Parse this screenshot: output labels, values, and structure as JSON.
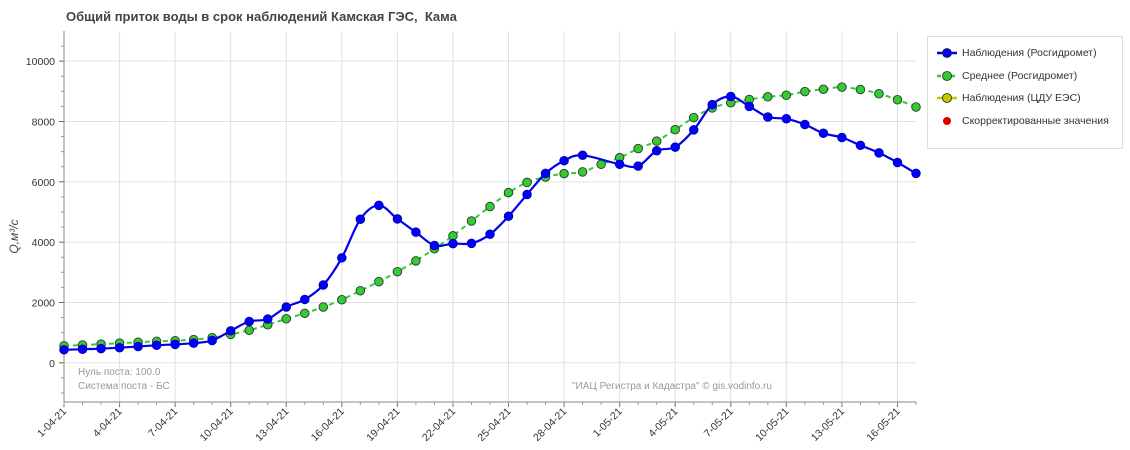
{
  "title": "Общий приток воды в срок наблюдений Камская ГЭС,  Кама",
  "legend": [
    {
      "label": "Наблюдения (Росгидромет)",
      "color": "#0000ee",
      "marker_color": "#0000ff",
      "style": "solid",
      "icon": "blue-line-circle-icon"
    },
    {
      "label": "Среднее (Росгидромет)",
      "color": "#33cc33",
      "marker_color": "#33cc33",
      "style": "dashed",
      "icon": "green-dashed-circle-icon"
    },
    {
      "label": "Наблюдения (ЦДУ ЕЭС)",
      "color": "#c8c800",
      "marker_color": "#c8c800",
      "style": "solid",
      "icon": "yellow-line-circle-icon"
    },
    {
      "label": "Скорректированные значения",
      "color": "#dd0000",
      "marker_color": "#dd0000",
      "style": "none",
      "icon": "red-dot-icon"
    }
  ],
  "notes": {
    "zero_post": "Нуль поста: 100.0",
    "system": "Система поста - БС",
    "credit": "\"ИАЦ Регистра и Кадастра\" © gis.vodinfo.ru"
  },
  "chart_data": {
    "type": "line",
    "title": "Общий приток воды в срок наблюдений Камская ГЭС,  Кама",
    "xlabel": "",
    "ylabel": "Q,м³/с",
    "x_start": "1-04-21",
    "x_end": "17-05-21",
    "ylim": [
      -1300,
      11000
    ],
    "yticks": [
      0,
      2000,
      4000,
      6000,
      8000,
      10000
    ],
    "xtick_labels": [
      "1-04-21",
      "4-04-21",
      "7-04-21",
      "10-04-21",
      "13-04-21",
      "16-04-21",
      "19-04-21",
      "22-04-21",
      "25-04-21",
      "28-04-21",
      "1-05-21",
      "4-05-21",
      "7-05-21",
      "10-05-21",
      "13-05-21",
      "16-05-21"
    ],
    "grid": true,
    "legend_position": "right",
    "series": [
      {
        "name": "Наблюдения (Росгидромет)",
        "color": "#0000ee",
        "style": "solid",
        "x": [
          "1-04-21",
          "2-04-21",
          "3-04-21",
          "4-04-21",
          "5-04-21",
          "6-04-21",
          "7-04-21",
          "8-04-21",
          "9-04-21",
          "10-04-21",
          "11-04-21",
          "12-04-21",
          "13-04-21",
          "14-04-21",
          "15-04-21",
          "16-04-21",
          "17-04-21",
          "18-04-21",
          "19-04-21",
          "20-04-21",
          "21-04-21",
          "22-04-21",
          "23-04-21",
          "24-04-21",
          "25-04-21",
          "26-04-21",
          "27-04-21",
          "28-04-21",
          "29-04-21",
          "30-04-21",
          "1-05-21",
          "2-05-21",
          "3-05-21",
          "4-05-21",
          "5-05-21",
          "6-05-21",
          "7-05-21",
          "8-05-21",
          "9-05-21",
          "10-05-21",
          "11-05-21",
          "12-05-21",
          "13-05-21",
          "14-05-21",
          "15-05-21",
          "16-05-21",
          "17-05-21"
        ],
        "values": [
          430,
          450,
          470,
          500,
          540,
          580,
          610,
          650,
          740,
          1060,
          1370,
          1450,
          1850,
          2100,
          2580,
          3480,
          4760,
          5220,
          4770,
          4330,
          3890,
          3950,
          3960,
          4260,
          4860,
          5580,
          6280,
          6700,
          6880,
          null,
          6580,
          6520,
          7030,
          7150,
          7720,
          8560,
          8830,
          8500,
          8150,
          8090,
          7900,
          7610,
          7470,
          7210,
          6960,
          6640,
          6280
        ]
      },
      {
        "name": "Среднее (Росгидромет)",
        "color": "#33cc33",
        "style": "dashed",
        "x": [
          "1-04-21",
          "2-04-21",
          "3-04-21",
          "4-04-21",
          "5-04-21",
          "6-04-21",
          "7-04-21",
          "8-04-21",
          "9-04-21",
          "10-04-21",
          "11-04-21",
          "12-04-21",
          "13-04-21",
          "14-04-21",
          "15-04-21",
          "16-04-21",
          "17-04-21",
          "18-04-21",
          "19-04-21",
          "20-04-21",
          "21-04-21",
          "22-04-21",
          "23-04-21",
          "24-04-21",
          "25-04-21",
          "26-04-21",
          "27-04-21",
          "28-04-21",
          "29-04-21",
          "30-04-21",
          "1-05-21",
          "2-05-21",
          "3-05-21",
          "4-05-21",
          "5-05-21",
          "6-05-21",
          "7-05-21",
          "8-05-21",
          "9-05-21",
          "10-05-21",
          "11-05-21",
          "12-05-21",
          "13-05-21",
          "14-05-21",
          "15-05-21",
          "16-05-21",
          "17-05-21"
        ],
        "values": [
          560,
          590,
          620,
          650,
          680,
          710,
          730,
          770,
          830,
          940,
          1080,
          1260,
          1460,
          1640,
          1850,
          2090,
          2390,
          2690,
          3020,
          3380,
          3780,
          4210,
          4700,
          5180,
          5640,
          5980,
          6160,
          6270,
          6330,
          6580,
          6800,
          7100,
          7350,
          7730,
          8130,
          8450,
          8620,
          8730,
          8820,
          8870,
          8990,
          9070,
          9140,
          9060,
          8920,
          8720,
          8480
        ]
      },
      {
        "name": "Наблюдения (ЦДУ ЕЭС)",
        "color": "#c8c800",
        "style": "solid",
        "x": [],
        "values": []
      }
    ]
  }
}
